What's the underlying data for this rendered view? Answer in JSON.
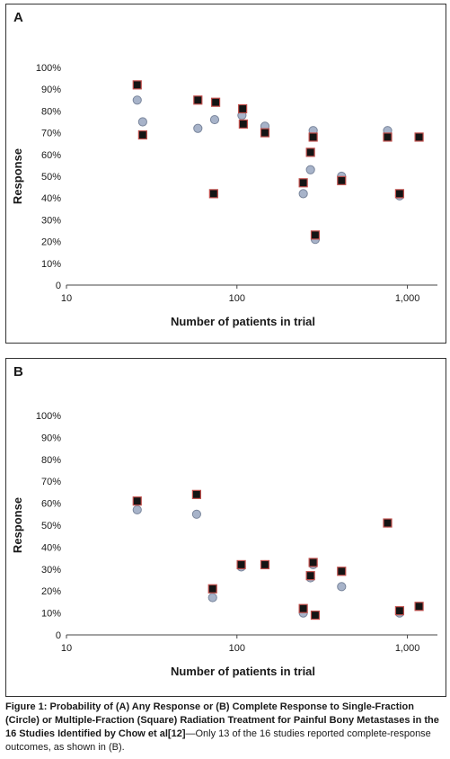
{
  "chart_data": [
    {
      "panel": "A",
      "type": "scatter",
      "xlabel": "Number of patients in trial",
      "ylabel": "Response",
      "xscale": "log",
      "xlim": [
        10,
        1500
      ],
      "ylim": [
        0,
        100
      ],
      "xticks": [
        10,
        100,
        1000
      ],
      "xtick_labels": [
        "10",
        "100",
        "1,000"
      ],
      "yticks": [
        0,
        10,
        20,
        30,
        40,
        50,
        60,
        70,
        80,
        90,
        100
      ],
      "ytick_labels": [
        "0",
        "10%",
        "20%",
        "30%",
        "40%",
        "50%",
        "60%",
        "70%",
        "80%",
        "90%",
        "100%"
      ],
      "series": [
        {
          "marker": "circle",
          "points": [
            [
              26,
              85
            ],
            [
              28,
              75
            ],
            [
              59,
              72
            ],
            [
              74,
              76
            ],
            [
              107,
              78
            ],
            [
              146,
              73
            ],
            [
              245,
              42
            ],
            [
              270,
              53
            ],
            [
              280,
              71
            ],
            [
              288,
              21
            ],
            [
              411,
              50
            ],
            [
              765,
              71
            ],
            [
              900,
              41
            ]
          ]
        },
        {
          "marker": "square",
          "points": [
            [
              26,
              92
            ],
            [
              28,
              69
            ],
            [
              59,
              85
            ],
            [
              73,
              42
            ],
            [
              75,
              84
            ],
            [
              108,
              81
            ],
            [
              109,
              74
            ],
            [
              146,
              70
            ],
            [
              245,
              47
            ],
            [
              270,
              61
            ],
            [
              280,
              68
            ],
            [
              288,
              23
            ],
            [
              411,
              48
            ],
            [
              765,
              68
            ],
            [
              900,
              42
            ],
            [
              1171,
              68
            ]
          ]
        }
      ],
      "colors": {
        "circle_fill": "#a7b3c9",
        "circle_stroke": "#7a869c",
        "square_fill": "#141414",
        "square_stroke": "#c0504d"
      }
    },
    {
      "panel": "B",
      "type": "scatter",
      "xlabel": "Number of patients in trial",
      "ylabel": "Response",
      "xscale": "log",
      "xlim": [
        10,
        1500
      ],
      "ylim": [
        0,
        100
      ],
      "xticks": [
        10,
        100,
        1000
      ],
      "xtick_labels": [
        "10",
        "100",
        "1,000"
      ],
      "yticks": [
        0,
        10,
        20,
        30,
        40,
        50,
        60,
        70,
        80,
        90,
        100
      ],
      "ytick_labels": [
        "0",
        "10%",
        "20%",
        "30%",
        "40%",
        "50%",
        "60%",
        "70%",
        "80%",
        "90%",
        "100%"
      ],
      "series": [
        {
          "marker": "circle",
          "points": [
            [
              26,
              57
            ],
            [
              58,
              55
            ],
            [
              72,
              17
            ],
            [
              106,
              31
            ],
            [
              146,
              32
            ],
            [
              245,
              10
            ],
            [
              270,
              26
            ],
            [
              280,
              32
            ],
            [
              411,
              22
            ],
            [
              765,
              51
            ],
            [
              900,
              10
            ]
          ]
        },
        {
          "marker": "square",
          "points": [
            [
              26,
              61
            ],
            [
              58,
              64
            ],
            [
              72,
              21
            ],
            [
              106,
              32
            ],
            [
              146,
              32
            ],
            [
              245,
              12
            ],
            [
              270,
              27
            ],
            [
              280,
              33
            ],
            [
              288,
              9
            ],
            [
              411,
              29
            ],
            [
              765,
              51
            ],
            [
              900,
              11
            ],
            [
              1171,
              13
            ]
          ]
        }
      ],
      "colors": {
        "circle_fill": "#a7b3c9",
        "circle_stroke": "#7a869c",
        "square_fill": "#141414",
        "square_stroke": "#c0504d"
      }
    }
  ],
  "panel_labels": {
    "a": "A",
    "b": "B"
  },
  "caption": {
    "bold": "Figure 1: Probability of (A) Any Response or (B) Complete Response to Single-Fraction (Circle) or Multiple-Fraction (Square) Radiation Treatment for Painful Bony Metastases in the 16 Studies Identified by Chow et al[12]",
    "rest": "—Only 13 of the 16 studies reported complete-response outcomes, as shown in (B)."
  }
}
